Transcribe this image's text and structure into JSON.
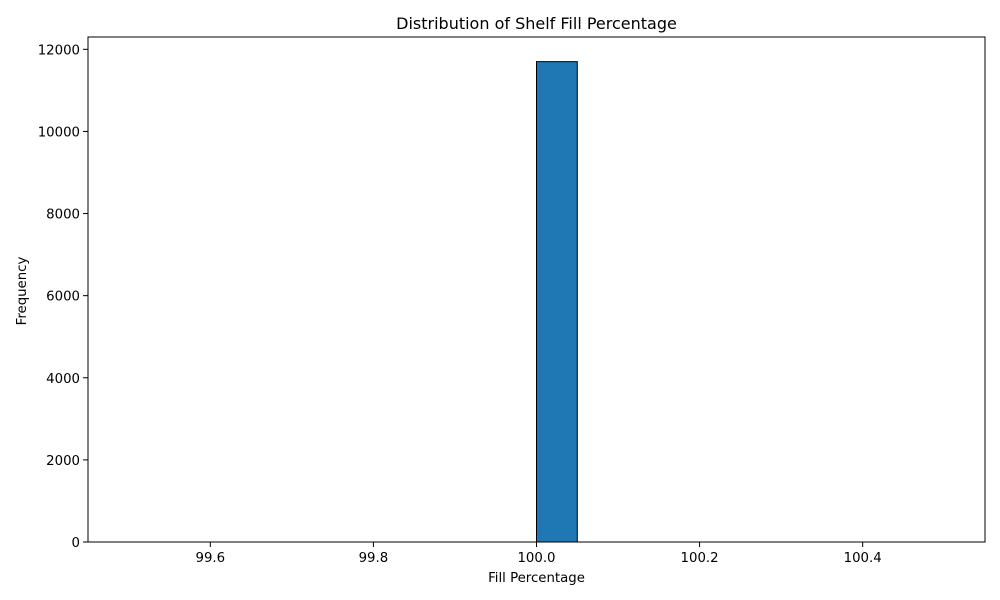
{
  "chart_data": {
    "type": "bar",
    "subtype": "histogram",
    "title": "Distribution of Shelf Fill Percentage",
    "xlabel": "Fill Percentage",
    "ylabel": "Frequency",
    "xlim": [
      99.45,
      100.55
    ],
    "ylim": [
      0,
      12300
    ],
    "x_ticks": [
      99.6,
      99.8,
      100.0,
      100.2,
      100.4
    ],
    "x_tick_labels": [
      "99.6",
      "99.8",
      "100.0",
      "100.2",
      "100.4"
    ],
    "y_ticks": [
      0,
      2000,
      4000,
      6000,
      8000,
      10000,
      12000
    ],
    "y_tick_labels": [
      "0",
      "2000",
      "4000",
      "6000",
      "8000",
      "10000",
      "12000"
    ],
    "bin_edges": [
      99.5,
      99.55,
      99.6,
      99.65,
      99.7,
      99.75,
      99.8,
      99.85,
      99.9,
      99.95,
      100.0,
      100.05,
      100.1,
      100.15,
      100.2,
      100.25,
      100.3,
      100.35,
      100.4,
      100.45,
      100.5
    ],
    "values": [
      0,
      0,
      0,
      0,
      0,
      0,
      0,
      0,
      0,
      0,
      11700,
      0,
      0,
      0,
      0,
      0,
      0,
      0,
      0,
      0
    ],
    "bar_color": "#1f77b4",
    "edge_color": "#000000",
    "grid": false,
    "legend": false
  }
}
